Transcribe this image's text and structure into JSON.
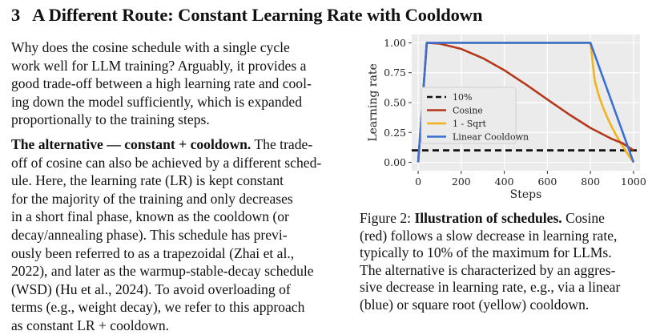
{
  "section": {
    "number": "3",
    "title": "A Different Route: Constant Learning Rate with Cooldown"
  },
  "body": {
    "paragraph1_lines": [
      "Why does the cosine schedule with a single cycle",
      "work well for LLM training? Arguably, it provides a",
      "good trade-off between a high learning rate and cool-",
      "ing down the model sufficiently, which is expanded",
      "proportionally to the training steps."
    ],
    "paragraph2_runin": "The alternative — constant + cooldown.",
    "paragraph2_first_line_rest": " The trade-",
    "paragraph2_lines": [
      "off of cosine can also be achieved by a different sched-",
      "ule.  Here, the learning rate (LR) is kept constant",
      "for the majority of the training and only decreases",
      "in a short final phase, known as the cooldown (or",
      "decay/annealing phase).  This schedule has previ-",
      "ously been referred to as a trapezoidal (Zhai et al.,",
      "2022), and later as the warmup-stable-decay schedule",
      "(WSD) (Hu et al., 2024).  To avoid overloading of",
      "terms (e.g., weight decay), we refer to this approach",
      "as constant LR + cooldown."
    ]
  },
  "figure": {
    "label": "Figure 2:",
    "bold_title": "Illustration of schedules.",
    "first_line_rest": " Cosine",
    "lines": [
      "(red) follows a slow decrease in learning rate,",
      "typically to 10% of the maximum for LLMs.",
      "The alternative is characterized by an aggres-",
      "sive decrease in learning rate, e.g., via a linear",
      "(blue) or square root (yellow) cooldown."
    ]
  },
  "chart_data": {
    "type": "line",
    "xlabel": "Steps",
    "ylabel": "Learning rate",
    "xlim": [
      -30,
      1030
    ],
    "ylim": [
      -0.07,
      1.07
    ],
    "x_ticks": [
      0,
      200,
      400,
      600,
      800,
      1000
    ],
    "y_ticks": [
      0.0,
      0.25,
      0.5,
      0.75,
      1.0
    ],
    "grid": true,
    "legend_position": "center-left",
    "background": "#ebebeb",
    "series": [
      {
        "name": "10%",
        "style": "dashed",
        "color": "#111111",
        "x": [
          -30,
          1030
        ],
        "y": [
          0.1,
          0.1
        ]
      },
      {
        "name": "Cosine",
        "style": "solid",
        "color": "#b5381c",
        "x": [
          0,
          40,
          100,
          200,
          300,
          400,
          500,
          600,
          700,
          800,
          900,
          950,
          1000
        ],
        "y": [
          0.0,
          1.0,
          0.993,
          0.949,
          0.872,
          0.771,
          0.652,
          0.526,
          0.402,
          0.288,
          0.195,
          0.159,
          0.1
        ]
      },
      {
        "name": "1 - Sqrt",
        "style": "solid",
        "color": "#f2b21b",
        "x": [
          0,
          40,
          800,
          820,
          840,
          860,
          880,
          900,
          920,
          940,
          960,
          980,
          1000
        ],
        "y": [
          0.0,
          1.0,
          1.0,
          0.684,
          0.553,
          0.452,
          0.368,
          0.293,
          0.225,
          0.163,
          0.106,
          0.051,
          0.0
        ]
      },
      {
        "name": "Linear Cooldown",
        "style": "solid",
        "color": "#3a6fd3",
        "x": [
          0,
          40,
          800,
          1000
        ],
        "y": [
          0.0,
          1.0,
          1.0,
          0.0
        ]
      }
    ]
  }
}
